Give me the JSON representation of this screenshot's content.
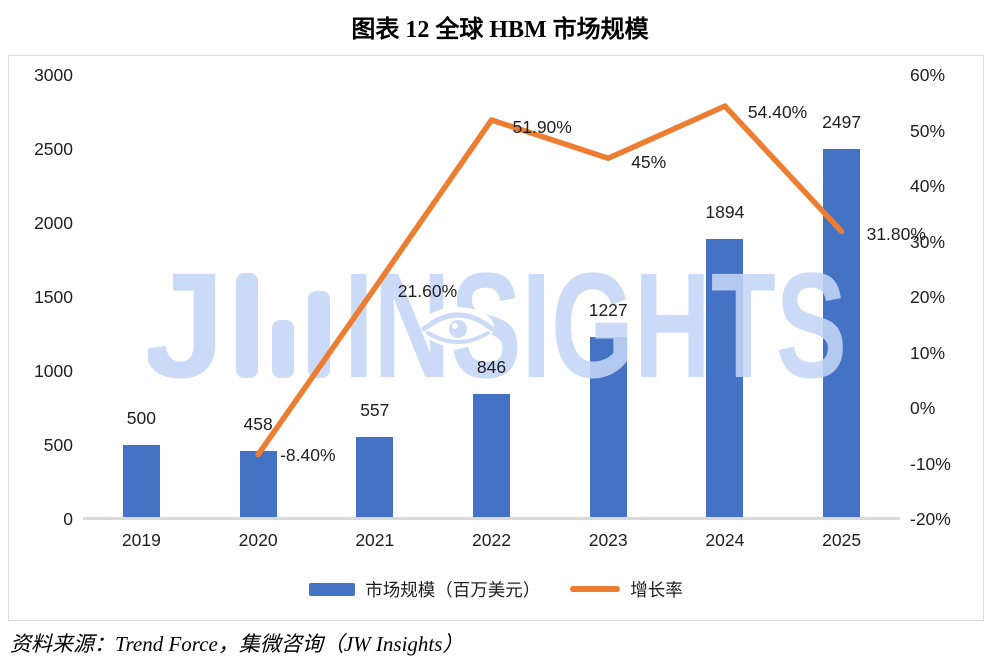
{
  "title": "图表 12 全球 HBM 市场规模",
  "source": "资料来源：Trend Force，集微咨询（JW Insights）",
  "watermark": {
    "logo_letter": "J",
    "text": "INSIGHTS"
  },
  "chart_data": {
    "type": "bar+line",
    "title": "图表 12 全球 HBM 市场规模",
    "categories": [
      "2019",
      "2020",
      "2021",
      "2022",
      "2023",
      "2024",
      "2025"
    ],
    "series": [
      {
        "name": "市场规模（百万美元）",
        "chart": "bar",
        "axis": "left",
        "color": "#4472C4",
        "values": [
          500,
          458,
          557,
          846,
          1227,
          1894,
          2497
        ],
        "data_labels": [
          "500",
          "458",
          "557",
          "846",
          "1227",
          "1894",
          "2497"
        ]
      },
      {
        "name": "增长率",
        "chart": "line",
        "axis": "right",
        "color": "#ED7D31",
        "values": [
          null,
          -8.4,
          21.6,
          51.9,
          45,
          54.4,
          31.8
        ],
        "data_labels": [
          null,
          "-8.40%",
          "21.60%",
          "51.90%",
          "45%",
          "54.40%",
          "31.80%"
        ]
      }
    ],
    "left_axis": {
      "min": 0,
      "max": 3000,
      "step": 500,
      "tick_labels": [
        "3000",
        "2500",
        "2000",
        "1500",
        "1000",
        "500",
        "0"
      ]
    },
    "right_axis": {
      "min": -20,
      "max": 60,
      "step": 10,
      "tick_labels": [
        "60%",
        "50%",
        "40%",
        "30%",
        "20%",
        "10%",
        "0%",
        "-10%",
        "-20%"
      ]
    },
    "legend": {
      "position": "bottom",
      "items": [
        {
          "label": "市场规模（百万美元）",
          "marker": "bar",
          "color": "#4472C4"
        },
        {
          "label": "增长率",
          "marker": "line",
          "color": "#ED7D31"
        }
      ]
    },
    "grid": false,
    "watermark_color": "#c4d6f5"
  }
}
